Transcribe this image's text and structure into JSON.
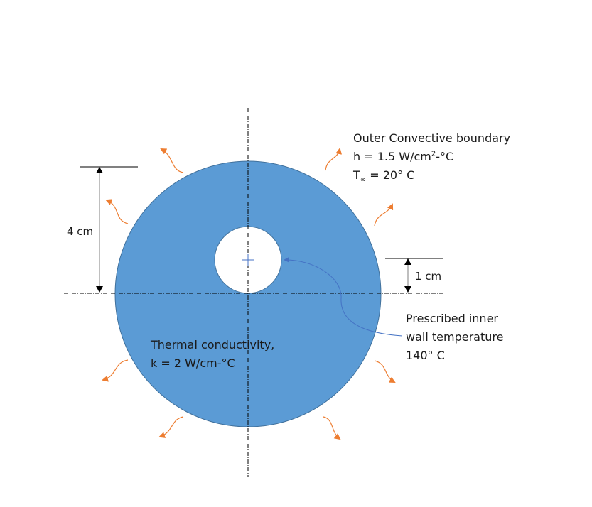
{
  "colors": {
    "disk_fill": "#5b9bd5",
    "disk_stroke": "#41719c",
    "heat_arrow": "#ed7d31",
    "dim_line": "#000000",
    "leader": "#4472c4"
  },
  "labels": {
    "outer_boundary_title": "Outer Convective boundary",
    "h_value": "h = 1.5 W/cm",
    "h_exp": "2",
    "h_unit": "-°C",
    "tinf_T": "T",
    "tinf_sub": "∞",
    "tinf_value": " = 20° C",
    "outer_dim": "4 cm",
    "inner_dim": "1 cm",
    "inner_line1": "Prescribed inner",
    "inner_line2": "wall temperature",
    "inner_line3": "140° C",
    "k_line1": "Thermal conductivity,",
    "k_line2": "k = 2 W/cm-°C"
  },
  "icons": [
    "heat-flux-arrow-icon",
    "center-cross-icon",
    "dimension-arrow-icon"
  ]
}
